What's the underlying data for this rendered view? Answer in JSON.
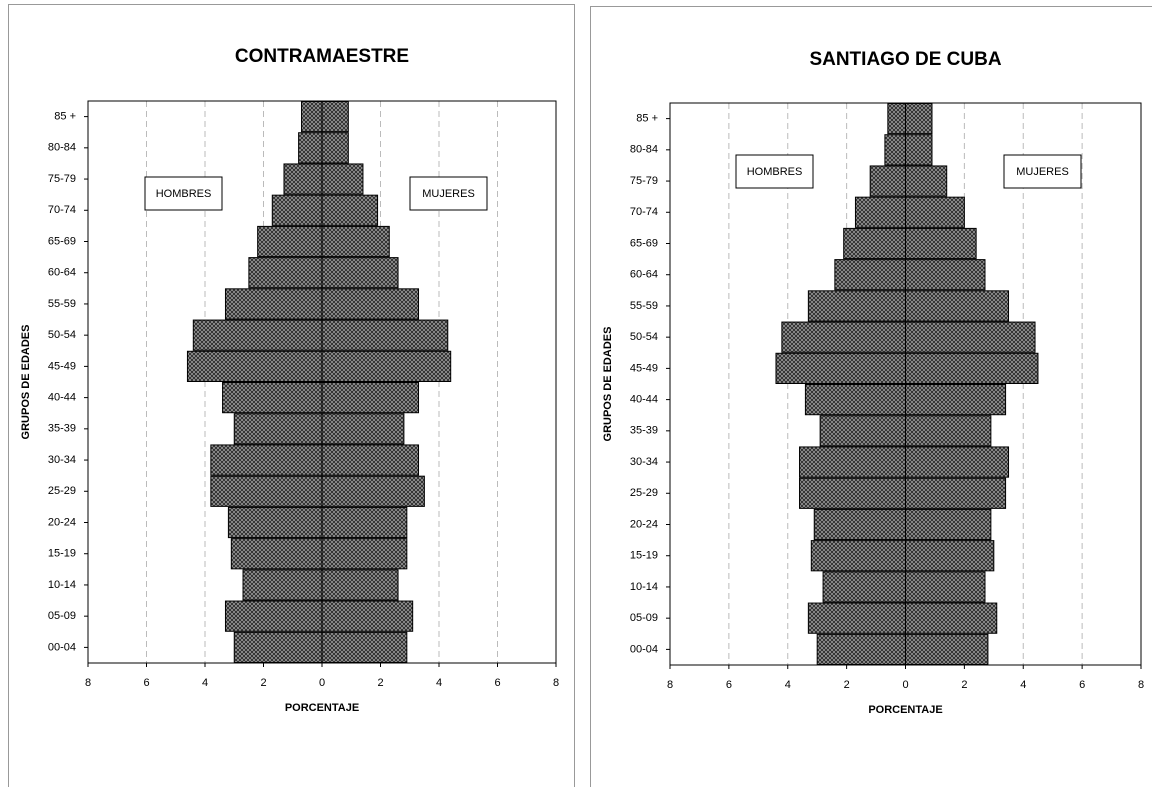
{
  "chart_data": [
    {
      "type": "pyramid",
      "title": "CONTRAMAESTRE",
      "x_label": "PORCENTAJE",
      "y_label": "GRUPOS DE EDADES",
      "categories": [
        "00-04",
        "05-09",
        "10-14",
        "15-19",
        "20-24",
        "25-29",
        "30-34",
        "35-39",
        "40-44",
        "45-49",
        "50-54",
        "55-59",
        "60-64",
        "65-69",
        "70-74",
        "75-79",
        "80-84",
        "85 +"
      ],
      "series": [
        {
          "name": "HOMBRES",
          "color": "#9a9a9a",
          "values": [
            -3.0,
            -3.3,
            -2.7,
            -3.1,
            -3.2,
            -3.8,
            -3.8,
            -3.0,
            -3.4,
            -4.6,
            -4.4,
            -3.3,
            -2.5,
            -2.2,
            -1.7,
            -1.3,
            -0.8,
            -0.7
          ]
        },
        {
          "name": "MUJERES",
          "color": "#9a9a9a",
          "values": [
            2.9,
            3.1,
            2.6,
            2.9,
            2.9,
            3.5,
            3.3,
            2.8,
            3.3,
            4.4,
            4.3,
            3.3,
            2.6,
            2.3,
            1.9,
            1.4,
            0.9,
            0.9
          ]
        }
      ],
      "xlim": [
        -8,
        8
      ],
      "xticks": [
        {
          "value": -8,
          "label": "8"
        },
        {
          "value": -6,
          "label": "6"
        },
        {
          "value": -4,
          "label": "4"
        },
        {
          "value": -2,
          "label": "2"
        },
        0,
        2,
        4,
        6,
        8
      ],
      "grid": true
    },
    {
      "type": "pyramid",
      "title": "SANTIAGO DE CUBA",
      "x_label": "PORCENTAJE",
      "y_label": "GRUPOS DE EDADES",
      "categories": [
        "00-04",
        "05-09",
        "10-14",
        "15-19",
        "20-24",
        "25-29",
        "30-34",
        "35-39",
        "40-44",
        "45-49",
        "50-54",
        "55-59",
        "60-64",
        "65-69",
        "70-74",
        "75-79",
        "80-84",
        "85 +"
      ],
      "series": [
        {
          "name": "HOMBRES",
          "color": "#9a9a9a",
          "values": [
            -3.0,
            -3.3,
            -2.8,
            -3.2,
            -3.1,
            -3.6,
            -3.6,
            -2.9,
            -3.4,
            -4.4,
            -4.2,
            -3.3,
            -2.4,
            -2.1,
            -1.7,
            -1.2,
            -0.7,
            -0.6
          ]
        },
        {
          "name": "MUJERES",
          "color": "#9a9a9a",
          "values": [
            2.8,
            3.1,
            2.7,
            3.0,
            2.9,
            3.4,
            3.5,
            2.9,
            3.4,
            4.5,
            4.4,
            3.5,
            2.7,
            2.4,
            2.0,
            1.4,
            0.9,
            0.9
          ]
        }
      ],
      "xlim": [
        -8,
        8
      ],
      "xticks": [
        {
          "value": -8,
          "label": "8"
        },
        {
          "value": -6,
          "label": "6"
        },
        {
          "value": -4,
          "label": "4"
        },
        {
          "value": -2,
          "label": "2"
        },
        0,
        2,
        4,
        6,
        8
      ],
      "grid": true
    }
  ]
}
